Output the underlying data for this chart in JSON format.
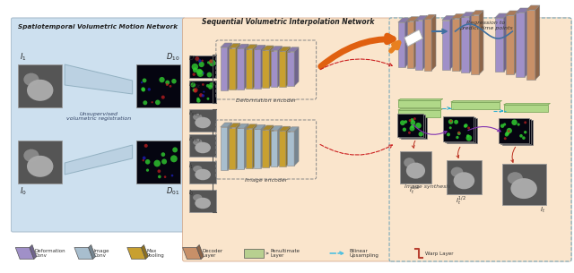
{
  "title_left": "Spatiotemporal Volumetric Motion Network",
  "title_middle": "Sequential Volumetric Interpolation Network",
  "bg_left": "#cde0ef",
  "bg_middle": "#fae5cc",
  "bg_right_border": "#7aaabb",
  "legend_labels": [
    "Deformation\nConv",
    "Image\nConv",
    "Max\nPooling",
    "Decoder\nLayer",
    "Penultimate\nLayer",
    "Bilinear\nUpsampling",
    "Warp Layer"
  ],
  "legend_colors": [
    "#a090c8",
    "#a8bece",
    "#c8a030",
    "#c89068",
    "#b8d090",
    "#50c0e0",
    "#b84030"
  ],
  "def_enc_colors": [
    "#a090c8",
    "#c8a030",
    "#a090c8",
    "#c8a030",
    "#a090c8",
    "#c8a030",
    "#a090c8",
    "#c8a030",
    "#a090c8"
  ],
  "img_enc_colors": [
    "#a8bece",
    "#c8a030",
    "#a8bece",
    "#c8a030",
    "#a8bece",
    "#c8a030",
    "#a8bece",
    "#c8a030",
    "#a8bece"
  ],
  "dec_colors_1": [
    "#a090c8",
    "#c89068",
    "#a090c8",
    "#c89068"
  ],
  "dec_colors_2": [
    "#a090c8",
    "#c89068",
    "#a090c8",
    "#c89068"
  ],
  "dec_colors_3": [
    "#a090c8",
    "#c89068",
    "#a090c8",
    "#c89068"
  ]
}
